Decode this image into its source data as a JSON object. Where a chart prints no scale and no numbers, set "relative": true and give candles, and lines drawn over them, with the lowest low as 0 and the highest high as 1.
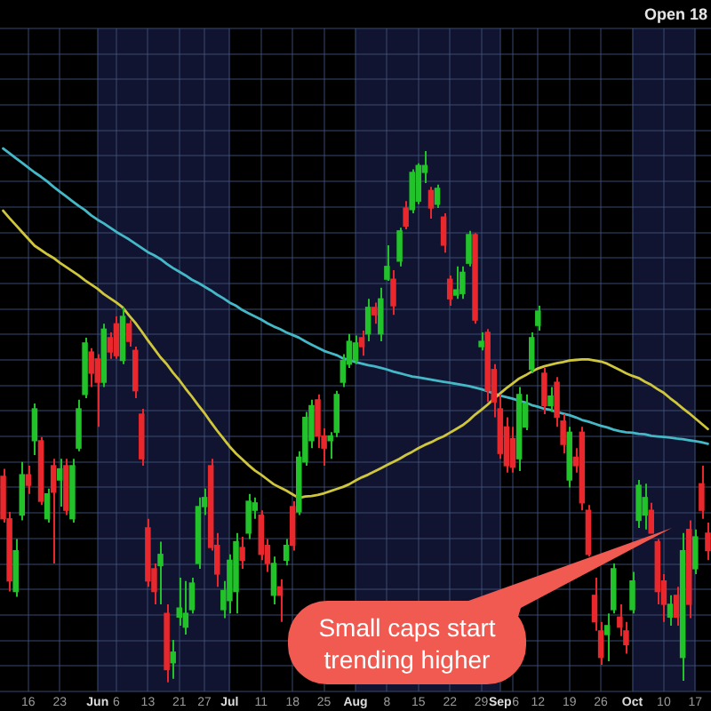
{
  "chart_data": {
    "type": "candlestick",
    "relative": true,
    "grid": true,
    "marker": "none",
    "categories": [
      null,
      null,
      null,
      null,
      "16",
      null,
      null,
      null,
      null,
      "23",
      null,
      null,
      null,
      null,
      null,
      "Jun",
      null,
      null,
      "6",
      null,
      null,
      null,
      null,
      "13",
      null,
      null,
      null,
      null,
      "21",
      null,
      null,
      null,
      "27",
      null,
      null,
      null,
      "Jul",
      null,
      null,
      null,
      null,
      "11",
      null,
      null,
      null,
      null,
      "18",
      null,
      null,
      null,
      null,
      "25",
      null,
      null,
      null,
      null,
      "Aug",
      null,
      null,
      null,
      null,
      "8",
      null,
      null,
      null,
      null,
      "15",
      null,
      null,
      null,
      null,
      "22",
      null,
      null,
      null,
      null,
      "29",
      null,
      null,
      "Sep",
      null,
      "6",
      null,
      null,
      null,
      "12",
      null,
      null,
      null,
      null,
      "19",
      null,
      null,
      null,
      null,
      "26",
      null,
      null,
      null,
      null,
      "Oct",
      null,
      null,
      null,
      null,
      "10",
      null,
      null,
      null,
      null,
      "17",
      null,
      null
    ],
    "ohlc": [
      [
        0.388,
        0.402,
        0.301,
        0.308
      ],
      [
        0.308,
        0.321,
        0.171,
        0.191
      ],
      [
        0.171,
        0.27,
        0.161,
        0.248
      ],
      [
        0.315,
        0.415,
        0.305,
        0.391
      ],
      [
        0.391,
        0.408,
        0.355,
        0.371
      ],
      [
        0.455,
        0.525,
        0.428,
        0.515
      ],
      [
        0.455,
        0.462,
        0.334,
        0.341
      ],
      [
        0.308,
        0.365,
        0.301,
        0.355
      ],
      [
        0.408,
        0.421,
        0.224,
        0.358
      ],
      [
        0.381,
        0.421,
        0.331,
        0.402
      ],
      [
        0.408,
        0.421,
        0.315,
        0.324
      ],
      [
        0.308,
        0.421,
        0.301,
        0.408
      ],
      [
        0.441,
        0.532,
        0.435,
        0.515
      ],
      [
        0.542,
        0.649,
        0.535,
        0.639
      ],
      [
        0.622,
        0.629,
        0.556,
        0.582
      ],
      [
        0.609,
        0.618,
        0.481,
        0.565
      ],
      [
        0.565,
        0.675,
        0.556,
        0.665
      ],
      [
        0.649,
        0.659,
        0.609,
        0.622
      ],
      [
        0.675,
        0.689,
        0.609,
        0.615
      ],
      [
        0.606,
        0.706,
        0.599,
        0.689
      ],
      [
        0.675,
        0.682,
        0.632,
        0.642
      ],
      [
        0.625,
        0.632,
        0.535,
        0.549
      ],
      [
        0.505,
        0.515,
        0.408,
        0.421
      ],
      [
        0.291,
        0.308,
        0.18,
        0.191
      ],
      [
        0.214,
        0.224,
        0.147,
        0.171
      ],
      [
        0.22,
        0.265,
        0.147,
        0.241
      ],
      [
        0.13,
        0.147,
        0,
        0.024
      ],
      [
        0.037,
        0.08,
        0.007,
        0.057
      ],
      [
        0.123,
        0.197,
        0.107,
        0.14
      ],
      [
        0.104,
        0.191,
        0.09,
        0.13
      ],
      [
        0.137,
        0.197,
        0.13,
        0.187
      ],
      [
        0.224,
        0.348,
        0.214,
        0.331
      ],
      [
        0.331,
        0.365,
        0.315,
        0.348
      ],
      [
        0.408,
        0.421,
        0.248,
        0.254
      ],
      [
        0.258,
        0.281,
        0.18,
        0.204
      ],
      [
        0.137,
        0.191,
        0.121,
        0.173
      ],
      [
        0.154,
        0.241,
        0.13,
        0.23
      ],
      [
        0.171,
        0.281,
        0.13,
        0.265
      ],
      [
        0.254,
        0.274,
        0.214,
        0.23
      ],
      [
        0.281,
        0.355,
        0.27,
        0.341
      ],
      [
        0.324,
        0.348,
        0.308,
        0.338
      ],
      [
        0.315,
        0.324,
        0.23,
        0.241
      ],
      [
        0.258,
        0.27,
        0.208,
        0.224
      ],
      [
        0.164,
        0.237,
        0.147,
        0.224
      ],
      [
        0.18,
        0.194,
        0.114,
        0.164
      ],
      [
        0.23,
        0.27,
        0.22,
        0.258
      ],
      [
        0.331,
        0.341,
        0.248,
        0.258
      ],
      [
        0.321,
        0.435,
        0.315,
        0.424
      ],
      [
        0.415,
        0.509,
        0.408,
        0.499
      ],
      [
        0.455,
        0.532,
        0.441,
        0.521
      ],
      [
        0.532,
        0.542,
        0.441,
        0.464
      ],
      [
        0.464,
        0.478,
        0.408,
        0.441
      ],
      [
        0.455,
        0.471,
        0.421,
        0.464
      ],
      [
        0.471,
        0.549,
        0.462,
        0.542
      ],
      [
        0.565,
        0.618,
        0.556,
        0.606
      ],
      [
        0.599,
        0.656,
        0.592,
        0.642
      ],
      [
        0.606,
        0.653,
        0.599,
        0.639
      ],
      [
        0.649,
        0.662,
        0.615,
        0.632
      ],
      [
        0.656,
        0.722,
        0.642,
        0.706
      ],
      [
        0.706,
        0.715,
        0.675,
        0.692
      ],
      [
        0.656,
        0.743,
        0.642,
        0.722
      ],
      [
        0.759,
        0.823,
        0.756,
        0.783
      ],
      [
        0.759,
        0.776,
        0.692,
        0.709
      ],
      [
        0.793,
        0.856,
        0.783,
        0.85
      ],
      [
        0.893,
        0.906,
        0.853,
        0.859
      ],
      [
        0.89,
        0.966,
        0.883,
        0.96
      ],
      [
        0.906,
        0.977,
        0.9,
        0.973
      ],
      [
        0.96,
        1,
        0.94,
        0.973
      ],
      [
        0.926,
        0.933,
        0.873,
        0.893
      ],
      [
        0.9,
        0.937,
        0.893,
        0.93
      ],
      [
        0.876,
        0.883,
        0.809,
        0.823
      ],
      [
        0.759,
        0.766,
        0.709,
        0.722
      ],
      [
        0.729,
        0.783,
        0.722,
        0.739
      ],
      [
        0.732,
        0.783,
        0.722,
        0.772
      ],
      [
        0.789,
        0.85,
        0.783,
        0.843
      ],
      [
        0.843,
        0.846,
        0.675,
        0.682
      ],
      [
        0.632,
        0.659,
        0.625,
        0.642
      ],
      [
        0.659,
        0.665,
        0.528,
        0.549
      ],
      [
        0.589,
        0.599,
        0.499,
        0.528
      ],
      [
        0.515,
        0.542,
        0.421,
        0.431
      ],
      [
        0.481,
        0.499,
        0.395,
        0.408
      ],
      [
        0.459,
        0.481,
        0.395,
        0.405
      ],
      [
        0.421,
        0.556,
        0.398,
        0.542
      ],
      [
        0.481,
        0.542,
        0.475,
        0.525
      ],
      [
        0.589,
        0.659,
        0.582,
        0.649
      ],
      [
        0.672,
        0.709,
        0.662,
        0.699
      ],
      [
        0.582,
        0.592,
        0.505,
        0.521
      ],
      [
        0.521,
        0.556,
        0.509,
        0.539
      ],
      [
        0.565,
        0.575,
        0.481,
        0.499
      ],
      [
        0.492,
        0.505,
        0.431,
        0.448
      ],
      [
        0.381,
        0.481,
        0.367,
        0.471
      ],
      [
        0.424,
        0.441,
        0.395,
        0.408
      ],
      [
        0.471,
        0.481,
        0.324,
        0.338
      ],
      [
        0.324,
        0.334,
        0.237,
        0.241
      ],
      [
        0.164,
        0.197,
        0.097,
        0.114
      ],
      [
        0.097,
        0.114,
        0.033,
        0.047
      ],
      [
        0.09,
        0.13,
        0.04,
        0.107
      ],
      [
        0.137,
        0.224,
        0.13,
        0.214
      ],
      [
        0.123,
        0.147,
        0.087,
        0.104
      ],
      [
        0.097,
        0.114,
        0.054,
        0.071
      ],
      [
        0.137,
        0.208,
        0.13,
        0.191
      ],
      [
        0.305,
        0.381,
        0.291,
        0.371
      ],
      [
        0.315,
        0.374,
        0.288,
        0.348
      ],
      [
        0.324,
        0.338,
        0.281,
        0.281
      ],
      [
        0.265,
        0.27,
        0.147,
        0.171
      ],
      [
        0.191,
        0.204,
        0.114,
        0.147
      ],
      [
        0.123,
        0.164,
        0.107,
        0.147
      ],
      [
        0.164,
        0.18,
        0.107,
        0.123
      ],
      [
        0.047,
        0.281,
        0.003,
        0.248
      ],
      [
        0.288,
        0.305,
        0.121,
        0.147
      ],
      [
        0.214,
        0.288,
        0.204,
        0.274
      ],
      [
        0.374,
        0.408,
        0.308,
        0.324
      ],
      [
        0.281,
        0.301,
        0.23,
        0.248
      ]
    ],
    "colors": [
      "#e8282c",
      "#e8282c",
      "#22c32a",
      "#22c32a",
      "#e8282c",
      "#22c32a",
      "#e8282c",
      "#22c32a",
      "#e8282c",
      "#22c32a",
      "#e8282c",
      "#22c32a",
      "#22c32a",
      "#22c32a",
      "#e8282c",
      "#e8282c",
      "#22c32a",
      "#e8282c",
      "#e8282c",
      "#22c32a",
      "#e8282c",
      "#e8282c",
      "#e8282c",
      "#e8282c",
      "#e8282c",
      "#22c32a",
      "#e8282c",
      "#22c32a",
      "#22c32a",
      "#22c32a",
      "#22c32a",
      "#22c32a",
      "#22c32a",
      "#e8282c",
      "#e8282c",
      "#22c32a",
      "#22c32a",
      "#22c32a",
      "#e8282c",
      "#22c32a",
      "#22c32a",
      "#e8282c",
      "#e8282c",
      "#22c32a",
      "#e8282c",
      "#22c32a",
      "#e8282c",
      "#22c32a",
      "#22c32a",
      "#22c32a",
      "#e8282c",
      "#e8282c",
      "#22c32a",
      "#22c32a",
      "#22c32a",
      "#22c32a",
      "#22c32a",
      "#e8282c",
      "#22c32a",
      "#e8282c",
      "#22c32a",
      "#22c32a",
      "#e8282c",
      "#22c32a",
      "#e8282c",
      "#22c32a",
      "#22c32a",
      "#22c32a",
      "#e8282c",
      "#22c32a",
      "#e8282c",
      "#e8282c",
      "#22c32a",
      "#22c32a",
      "#22c32a",
      "#e8282c",
      "#22c32a",
      "#e8282c",
      "#e8282c",
      "#e8282c",
      "#e8282c",
      "#e8282c",
      "#22c32a",
      "#22c32a",
      "#22c32a",
      "#22c32a",
      "#e8282c",
      "#22c32a",
      "#e8282c",
      "#e8282c",
      "#22c32a",
      "#e8282c",
      "#e8282c",
      "#e8282c",
      "#e8282c",
      "#e8282c",
      "#22c32a",
      "#22c32a",
      "#e8282c",
      "#e8282c",
      "#22c32a",
      "#22c32a",
      "#22c32a",
      "#e8282c",
      "#e8282c",
      "#e8282c",
      "#22c32a",
      "#e8282c",
      "#22c32a",
      "#e8282c",
      "#22c32a",
      "#e8282c",
      "#e8282c"
    ],
    "series": [
      {
        "type": "line",
        "color": "#cfc63c",
        "values": [
          0.888,
          0.874,
          0.861,
          0.848,
          0.835,
          0.822,
          0.814,
          0.806,
          0.799,
          0.79,
          0.782,
          0.774,
          0.766,
          0.757,
          0.749,
          0.741,
          0.731,
          0.723,
          0.715,
          0.706,
          0.691,
          0.677,
          0.661,
          0.644,
          0.628,
          0.612,
          0.599,
          0.583,
          0.569,
          0.553,
          0.538,
          0.522,
          0.507,
          0.49,
          0.474,
          0.459,
          0.444,
          0.431,
          0.42,
          0.409,
          0.399,
          0.391,
          0.382,
          0.373,
          0.367,
          0.361,
          0.354,
          0.347,
          0.35,
          0.351,
          0.353,
          0.356,
          0.36,
          0.364,
          0.368,
          0.373,
          0.38,
          0.386,
          0.391,
          0.397,
          0.403,
          0.409,
          0.415,
          0.421,
          0.428,
          0.434,
          0.441,
          0.447,
          0.452,
          0.458,
          0.463,
          0.47,
          0.477,
          0.484,
          0.493,
          0.504,
          0.513,
          0.523,
          0.534,
          0.544,
          0.554,
          0.563,
          0.572,
          0.578,
          0.585,
          0.591,
          0.595,
          0.598,
          0.601,
          0.603,
          0.606,
          0.607,
          0.608,
          0.608,
          0.606,
          0.604,
          0.6,
          0.594,
          0.588,
          0.582,
          0.577,
          0.573,
          0.566,
          0.56,
          0.552,
          0.545,
          0.535,
          0.526,
          0.516,
          0.507,
          0.497,
          0.487,
          0.477
        ]
      },
      {
        "type": "line",
        "color": "#45b8c8",
        "values": [
          1.005,
          0.996,
          0.987,
          0.978,
          0.969,
          0.96,
          0.952,
          0.943,
          0.933,
          0.924,
          0.915,
          0.906,
          0.897,
          0.889,
          0.879,
          0.871,
          0.864,
          0.856,
          0.848,
          0.841,
          0.834,
          0.826,
          0.818,
          0.81,
          0.804,
          0.797,
          0.788,
          0.78,
          0.773,
          0.766,
          0.758,
          0.752,
          0.745,
          0.738,
          0.73,
          0.723,
          0.715,
          0.709,
          0.701,
          0.695,
          0.689,
          0.683,
          0.676,
          0.67,
          0.665,
          0.659,
          0.654,
          0.649,
          0.642,
          0.636,
          0.63,
          0.624,
          0.62,
          0.616,
          0.61,
          0.607,
          0.603,
          0.6,
          0.597,
          0.595,
          0.592,
          0.589,
          0.585,
          0.582,
          0.579,
          0.576,
          0.574,
          0.572,
          0.57,
          0.568,
          0.566,
          0.564,
          0.562,
          0.56,
          0.558,
          0.555,
          0.552,
          0.548,
          0.544,
          0.54,
          0.537,
          0.534,
          0.53,
          0.527,
          0.522,
          0.519,
          0.515,
          0.513,
          0.509,
          0.506,
          0.503,
          0.499,
          0.494,
          0.491,
          0.487,
          0.483,
          0.48,
          0.476,
          0.473,
          0.471,
          0.47,
          0.468,
          0.467,
          0.464,
          0.463,
          0.462,
          0.461,
          0.459,
          0.458,
          0.456,
          0.454,
          0.452,
          0.449
        ]
      }
    ],
    "bands": [
      {
        "axis": "x",
        "from": "Jun",
        "to": "Jul",
        "color": "#111430"
      },
      {
        "axis": "x",
        "from": "Aug",
        "to": "Sep",
        "color": "#111430"
      },
      {
        "axis": "x",
        "from": "Oct",
        "to": "17",
        "color": "#111430"
      }
    ],
    "annotations": [
      "Open 18",
      "Small caps start trending higher"
    ]
  }
}
